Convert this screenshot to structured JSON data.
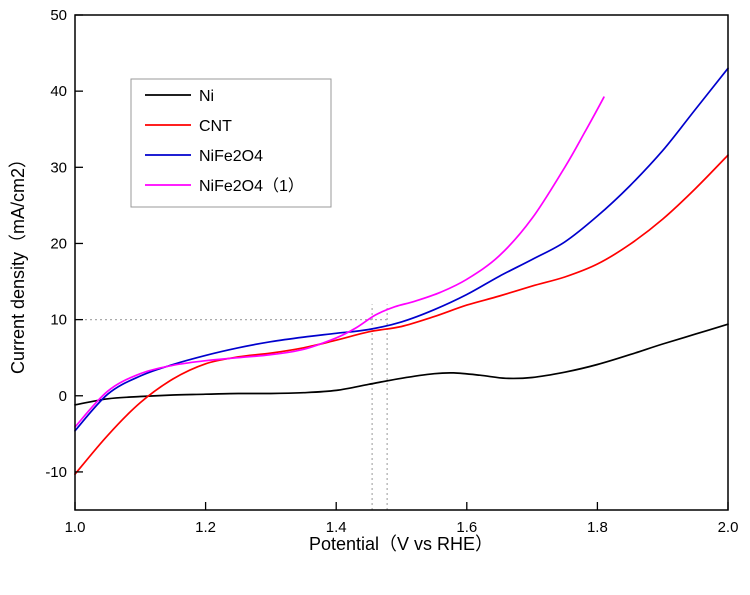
{
  "chart_data": {
    "type": "line",
    "title": "",
    "xlabel": "Potential（V vs RHE）",
    "ylabel": "Current density（mA/cm2）",
    "xlim": [
      1.0,
      2.0
    ],
    "ylim": [
      -15,
      50
    ],
    "xtick_values": [
      1.0,
      1.2,
      1.4,
      1.6,
      1.8,
      2.0
    ],
    "xtick_labels": [
      "1.0",
      "1.2",
      "1.4",
      "1.6",
      "1.8",
      "2.0"
    ],
    "ytick_values": [
      -10,
      0,
      10,
      20,
      30,
      40,
      50
    ],
    "ytick_labels": [
      "-10",
      "0",
      "10",
      "20",
      "30",
      "40",
      "50"
    ],
    "grid": false,
    "legend_position": "upper-left",
    "frame_color": "#000000",
    "reference_line_color": "#aaaaaa",
    "annotations": {
      "hline": {
        "y": 10,
        "x_from": 1.0,
        "x_to": 1.478
      },
      "vlines": [
        {
          "x": 1.455,
          "y_from": -15,
          "y_to": 12
        },
        {
          "x": 1.478,
          "y_from": -15,
          "y_to": 12
        }
      ]
    },
    "series": [
      {
        "name": "Ni",
        "color": "#000000",
        "points": [
          [
            1.0,
            -1.2
          ],
          [
            1.05,
            -0.4
          ],
          [
            1.1,
            -0.1
          ],
          [
            1.15,
            0.1
          ],
          [
            1.2,
            0.2
          ],
          [
            1.25,
            0.3
          ],
          [
            1.3,
            0.3
          ],
          [
            1.35,
            0.4
          ],
          [
            1.4,
            0.7
          ],
          [
            1.45,
            1.5
          ],
          [
            1.5,
            2.3
          ],
          [
            1.55,
            2.9
          ],
          [
            1.58,
            3.0
          ],
          [
            1.62,
            2.7
          ],
          [
            1.66,
            2.3
          ],
          [
            1.7,
            2.4
          ],
          [
            1.75,
            3.1
          ],
          [
            1.8,
            4.1
          ],
          [
            1.85,
            5.4
          ],
          [
            1.9,
            6.8
          ],
          [
            1.95,
            8.1
          ],
          [
            2.0,
            9.4
          ]
        ]
      },
      {
        "name": "CNT",
        "color": "#ff0000",
        "points": [
          [
            1.0,
            -10.3
          ],
          [
            1.05,
            -5.2
          ],
          [
            1.1,
            -0.9
          ],
          [
            1.15,
            2.2
          ],
          [
            1.2,
            4.2
          ],
          [
            1.25,
            5.1
          ],
          [
            1.3,
            5.6
          ],
          [
            1.35,
            6.3
          ],
          [
            1.4,
            7.3
          ],
          [
            1.45,
            8.4
          ],
          [
            1.5,
            9.1
          ],
          [
            1.55,
            10.4
          ],
          [
            1.6,
            11.9
          ],
          [
            1.65,
            13.1
          ],
          [
            1.7,
            14.4
          ],
          [
            1.75,
            15.6
          ],
          [
            1.8,
            17.3
          ],
          [
            1.85,
            19.9
          ],
          [
            1.9,
            23.2
          ],
          [
            1.95,
            27.2
          ],
          [
            2.0,
            31.6
          ]
        ]
      },
      {
        "name": "NiFe2O4",
        "color": "#0000cd",
        "points": [
          [
            1.0,
            -4.6
          ],
          [
            1.05,
            0.2
          ],
          [
            1.1,
            2.6
          ],
          [
            1.15,
            4.1
          ],
          [
            1.2,
            5.3
          ],
          [
            1.25,
            6.3
          ],
          [
            1.3,
            7.1
          ],
          [
            1.35,
            7.7
          ],
          [
            1.4,
            8.2
          ],
          [
            1.45,
            8.7
          ],
          [
            1.5,
            9.7
          ],
          [
            1.55,
            11.3
          ],
          [
            1.6,
            13.3
          ],
          [
            1.65,
            15.7
          ],
          [
            1.7,
            17.9
          ],
          [
            1.75,
            20.2
          ],
          [
            1.8,
            23.6
          ],
          [
            1.85,
            27.6
          ],
          [
            1.9,
            32.2
          ],
          [
            1.95,
            37.6
          ],
          [
            2.0,
            43.0
          ]
        ]
      },
      {
        "name": "NiFe2O4（1）",
        "color": "#ff00ff",
        "points": [
          [
            1.0,
            -4.1
          ],
          [
            1.05,
            0.6
          ],
          [
            1.1,
            2.9
          ],
          [
            1.15,
            4.0
          ],
          [
            1.2,
            4.6
          ],
          [
            1.25,
            5.0
          ],
          [
            1.3,
            5.4
          ],
          [
            1.35,
            6.1
          ],
          [
            1.4,
            7.6
          ],
          [
            1.43,
            8.9
          ],
          [
            1.46,
            10.6
          ],
          [
            1.49,
            11.7
          ],
          [
            1.52,
            12.4
          ],
          [
            1.56,
            13.6
          ],
          [
            1.6,
            15.3
          ],
          [
            1.65,
            18.4
          ],
          [
            1.7,
            23.3
          ],
          [
            1.75,
            30.0
          ],
          [
            1.78,
            34.5
          ],
          [
            1.81,
            39.2
          ]
        ]
      }
    ]
  }
}
